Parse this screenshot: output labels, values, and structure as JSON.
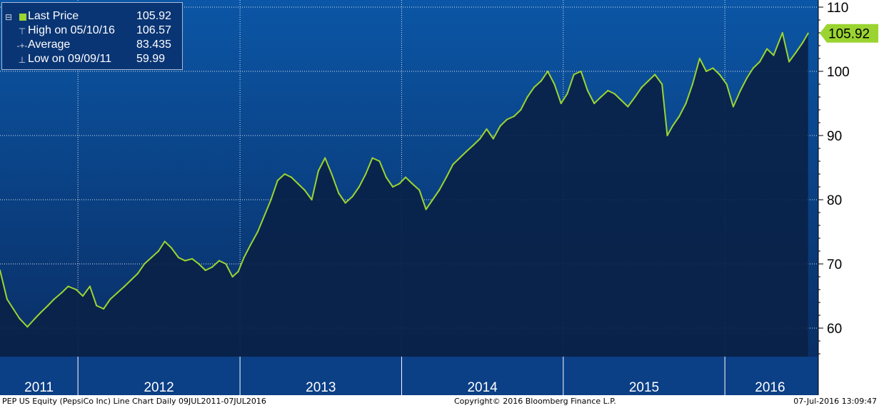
{
  "colors": {
    "background_top": "#0b56a6",
    "background_bottom": "#0a2a5e",
    "area_fill": "#0a2248",
    "line": "#9bd431",
    "right_axis": "#ffffff",
    "footer": "#ffffff",
    "price_tag": "#9bd431"
  },
  "legend": {
    "rows": [
      {
        "icon": "square-swatch",
        "label": "Last Price",
        "value": "105.92"
      },
      {
        "icon": "high-marker-icon",
        "label": "High on 05/10/16",
        "value": "106.57"
      },
      {
        "icon": "average-marker-icon",
        "label": "Average",
        "value": "83.435"
      },
      {
        "icon": "low-marker-icon",
        "label": "Low on 09/09/11",
        "value": "59.99"
      }
    ]
  },
  "last_price_tag": "105.92",
  "footer": {
    "left": "PEP US Equity (PepsiCo Inc) Line Chart  Daily 09JUL2011-07JUL2016",
    "center": "Copyright© 2016 Bloomberg Finance L.P.",
    "right": "07-Jul-2016 13:09:47"
  },
  "chart_data": {
    "type": "area",
    "title": "",
    "xlabel": "",
    "ylabel": "",
    "ylim": [
      54,
      112
    ],
    "y_ticks": [
      60,
      70,
      80,
      90,
      100,
      110
    ],
    "x_tick_labels": [
      "2011",
      "2012",
      "2013",
      "2014",
      "2015",
      "2016"
    ],
    "year_boundaries": [
      "2012-01-01",
      "2013-01-01",
      "2014-01-01",
      "2015-01-01",
      "2016-01-01"
    ],
    "xlim": [
      "2011-07-09",
      "2016-07-30"
    ],
    "grid": true,
    "y_axis_side": "right",
    "series": [
      {
        "name": "Last Price",
        "x": [
          "2011-07-09",
          "2011-07-25",
          "2011-08-08",
          "2011-08-22",
          "2011-09-09",
          "2011-09-26",
          "2011-10-10",
          "2011-10-25",
          "2011-11-08",
          "2011-11-25",
          "2011-12-10",
          "2011-12-28",
          "2012-01-12",
          "2012-01-28",
          "2012-02-12",
          "2012-02-28",
          "2012-03-14",
          "2012-03-30",
          "2012-04-15",
          "2012-04-30",
          "2012-05-15",
          "2012-05-30",
          "2012-06-15",
          "2012-07-01",
          "2012-07-15",
          "2012-07-30",
          "2012-08-15",
          "2012-08-30",
          "2012-09-15",
          "2012-09-30",
          "2012-10-15",
          "2012-10-30",
          "2012-11-15",
          "2012-11-30",
          "2012-12-15",
          "2012-12-28",
          "2013-01-10",
          "2013-01-25",
          "2013-02-10",
          "2013-02-25",
          "2013-03-12",
          "2013-03-27",
          "2013-04-12",
          "2013-04-27",
          "2013-05-12",
          "2013-05-27",
          "2013-06-12",
          "2013-06-27",
          "2013-07-12",
          "2013-07-27",
          "2013-08-12",
          "2013-08-27",
          "2013-09-12",
          "2013-09-27",
          "2013-10-12",
          "2013-10-27",
          "2013-11-12",
          "2013-11-27",
          "2013-12-12",
          "2013-12-27",
          "2014-01-10",
          "2014-01-25",
          "2014-02-10",
          "2014-02-25",
          "2014-03-12",
          "2014-03-27",
          "2014-04-12",
          "2014-04-27",
          "2014-05-12",
          "2014-05-27",
          "2014-06-12",
          "2014-06-27",
          "2014-07-12",
          "2014-07-27",
          "2014-08-12",
          "2014-08-27",
          "2014-09-12",
          "2014-09-27",
          "2014-10-12",
          "2014-10-27",
          "2014-11-12",
          "2014-11-27",
          "2014-12-12",
          "2014-12-27",
          "2015-01-10",
          "2015-01-25",
          "2015-02-10",
          "2015-02-25",
          "2015-03-12",
          "2015-03-27",
          "2015-04-12",
          "2015-04-27",
          "2015-05-12",
          "2015-05-27",
          "2015-06-12",
          "2015-06-27",
          "2015-07-12",
          "2015-07-27",
          "2015-08-12",
          "2015-08-24",
          "2015-09-05",
          "2015-09-20",
          "2015-10-05",
          "2015-10-20",
          "2015-11-05",
          "2015-11-20",
          "2015-12-05",
          "2015-12-20",
          "2016-01-05",
          "2016-01-20",
          "2016-02-05",
          "2016-02-20",
          "2016-03-05",
          "2016-03-20",
          "2016-04-05",
          "2016-04-20",
          "2016-05-10",
          "2016-05-25",
          "2016-06-10",
          "2016-06-25",
          "2016-07-07"
        ],
        "y": [
          69.0,
          64.5,
          63.0,
          61.5,
          60.2,
          61.5,
          62.5,
          63.5,
          64.5,
          65.5,
          66.5,
          66.0,
          65.0,
          66.5,
          63.5,
          63.0,
          64.5,
          65.5,
          66.5,
          67.5,
          68.5,
          70.0,
          71.0,
          72.0,
          73.5,
          72.5,
          71.0,
          70.5,
          70.8,
          70.0,
          69.0,
          69.5,
          70.5,
          70.0,
          68.0,
          68.8,
          71.0,
          73.0,
          75.0,
          77.5,
          80.0,
          83.0,
          84.0,
          83.5,
          82.5,
          81.5,
          80.0,
          84.5,
          86.5,
          84.0,
          81.0,
          79.5,
          80.5,
          82.0,
          84.0,
          86.5,
          86.0,
          83.5,
          82.0,
          82.5,
          83.5,
          82.5,
          81.5,
          78.5,
          80.0,
          81.5,
          83.5,
          85.5,
          86.5,
          87.5,
          88.5,
          89.5,
          91.0,
          89.5,
          91.5,
          92.5,
          93.0,
          94.0,
          96.0,
          97.5,
          98.5,
          100.0,
          98.0,
          95.0,
          96.5,
          99.5,
          100.0,
          97.0,
          95.0,
          96.0,
          97.0,
          96.5,
          95.5,
          94.5,
          96.0,
          97.5,
          98.5,
          99.5,
          98.0,
          90.0,
          91.5,
          93.0,
          95.0,
          98.0,
          102.0,
          100.0,
          100.5,
          99.5,
          98.0,
          94.5,
          97.0,
          99.0,
          100.5,
          101.5,
          103.5,
          102.5,
          106.0,
          101.5,
          103.0,
          104.5,
          105.92
        ]
      }
    ]
  }
}
